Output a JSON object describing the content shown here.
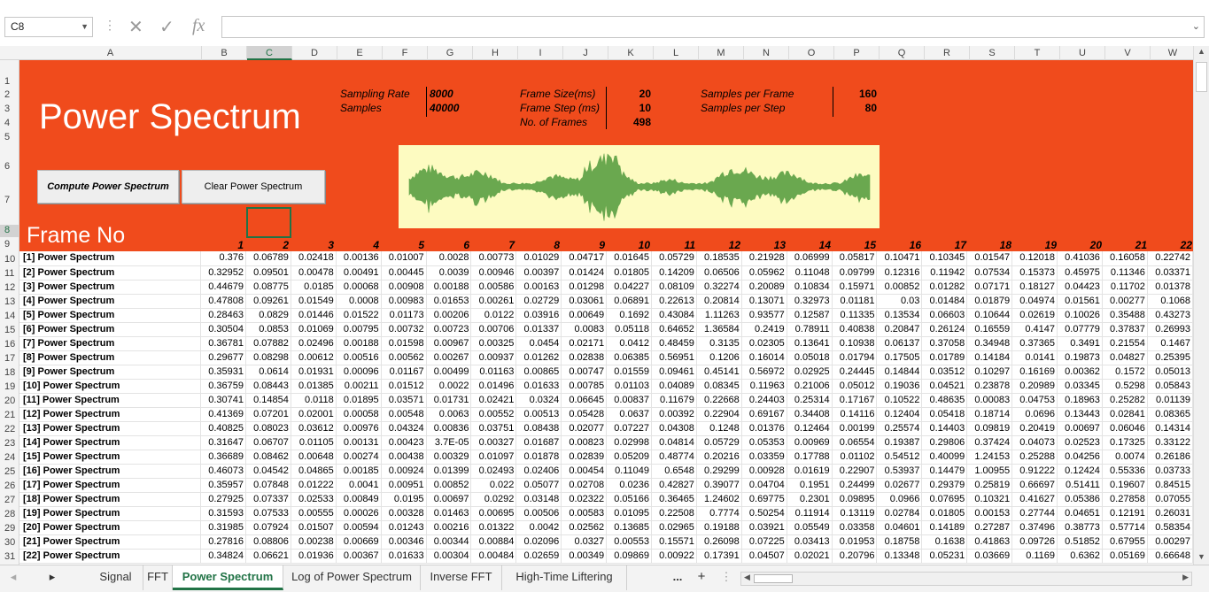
{
  "namebox": {
    "value": "C8"
  },
  "formula_bar": {
    "fx_label": "fx",
    "value": ""
  },
  "columns": [
    "A",
    "B",
    "C",
    "D",
    "E",
    "F",
    "G",
    "H",
    "I",
    "J",
    "K",
    "L",
    "M",
    "N",
    "O",
    "P",
    "Q",
    "R",
    "S",
    "T",
    "U",
    "V",
    "W"
  ],
  "selected_column": "C",
  "header_rows": [
    "1",
    "2",
    "3",
    "4",
    "5",
    "6",
    "7",
    "8",
    "9"
  ],
  "banner": {
    "title": "Power Spectrum",
    "frame_no_label": "Frame No",
    "sampling_rate_label": "Sampling Rate",
    "sampling_rate": "8000",
    "samples_label": "Samples",
    "samples": "40000",
    "frame_size_label": "Frame Size(ms)",
    "frame_size": "20",
    "frame_step_label": "Frame Step (ms)",
    "frame_step": "10",
    "num_frames_label": "No. of Frames",
    "num_frames": "498",
    "samples_per_frame_label": "Samples per Frame",
    "samples_per_frame": "160",
    "samples_per_step_label": "Samples per Step",
    "samples_per_step": "80",
    "compute_button": "Compute Power Spectrum",
    "clear_button": "Clear Power Spectrum"
  },
  "frame_indices": [
    "1",
    "2",
    "3",
    "4",
    "5",
    "6",
    "7",
    "8",
    "9",
    "10",
    "11",
    "12",
    "13",
    "14",
    "15",
    "16",
    "17",
    "18",
    "19",
    "20",
    "21",
    "22"
  ],
  "rows": [
    {
      "n": "10",
      "label": "[1] Power Spectrum",
      "v": [
        "0.376",
        "0.06789",
        "0.02418",
        "0.00136",
        "0.01007",
        "0.0028",
        "0.00773",
        "0.01029",
        "0.04717",
        "0.01645",
        "0.05729",
        "0.18535",
        "0.21928",
        "0.06999",
        "0.05817",
        "0.10471",
        "0.10345",
        "0.01547",
        "0.12018",
        "0.41036",
        "0.16058",
        "0.22742"
      ]
    },
    {
      "n": "11",
      "label": "[2] Power Spectrum",
      "v": [
        "0.32952",
        "0.09501",
        "0.00478",
        "0.00491",
        "0.00445",
        "0.0039",
        "0.00946",
        "0.00397",
        "0.01424",
        "0.01805",
        "0.14209",
        "0.06506",
        "0.05962",
        "0.11048",
        "0.09799",
        "0.12316",
        "0.11942",
        "0.07534",
        "0.15373",
        "0.45975",
        "0.11346",
        "0.03371"
      ]
    },
    {
      "n": "12",
      "label": "[3] Power Spectrum",
      "v": [
        "0.44679",
        "0.08775",
        "0.0185",
        "0.00068",
        "0.00908",
        "0.00188",
        "0.00586",
        "0.00163",
        "0.01298",
        "0.04227",
        "0.08109",
        "0.32274",
        "0.20089",
        "0.10834",
        "0.15971",
        "0.00852",
        "0.01282",
        "0.07171",
        "0.18127",
        "0.04423",
        "0.11702",
        "0.01378"
      ]
    },
    {
      "n": "13",
      "label": "[4] Power Spectrum",
      "v": [
        "0.47808",
        "0.09261",
        "0.01549",
        "0.0008",
        "0.00983",
        "0.01653",
        "0.00261",
        "0.02729",
        "0.03061",
        "0.06891",
        "0.22613",
        "0.20814",
        "0.13071",
        "0.32973",
        "0.01181",
        "0.03",
        "0.01484",
        "0.01879",
        "0.04974",
        "0.01561",
        "0.00277",
        "0.1068"
      ]
    },
    {
      "n": "14",
      "label": "[5] Power Spectrum",
      "v": [
        "0.28463",
        "0.0829",
        "0.01446",
        "0.01522",
        "0.01173",
        "0.00206",
        "0.0122",
        "0.03916",
        "0.00649",
        "0.1692",
        "0.43084",
        "1.11263",
        "0.93577",
        "0.12587",
        "0.11335",
        "0.13534",
        "0.06603",
        "0.10644",
        "0.02619",
        "0.10026",
        "0.35488",
        "0.43273"
      ]
    },
    {
      "n": "15",
      "label": "[6] Power Spectrum",
      "v": [
        "0.30504",
        "0.0853",
        "0.01069",
        "0.00795",
        "0.00732",
        "0.00723",
        "0.00706",
        "0.01337",
        "0.0083",
        "0.05118",
        "0.64652",
        "1.36584",
        "0.2419",
        "0.78911",
        "0.40838",
        "0.20847",
        "0.26124",
        "0.16559",
        "0.4147",
        "0.07779",
        "0.37837",
        "0.26993"
      ]
    },
    {
      "n": "16",
      "label": "[7] Power Spectrum",
      "v": [
        "0.36781",
        "0.07882",
        "0.02496",
        "0.00188",
        "0.01598",
        "0.00967",
        "0.00325",
        "0.0454",
        "0.02171",
        "0.0412",
        "0.48459",
        "0.3135",
        "0.02305",
        "0.13641",
        "0.10938",
        "0.06137",
        "0.37058",
        "0.34948",
        "0.37365",
        "0.3491",
        "0.21554",
        "0.1467"
      ]
    },
    {
      "n": "17",
      "label": "[8] Power Spectrum",
      "v": [
        "0.29677",
        "0.08298",
        "0.00612",
        "0.00516",
        "0.00562",
        "0.00267",
        "0.00937",
        "0.01262",
        "0.02838",
        "0.06385",
        "0.56951",
        "0.1206",
        "0.16014",
        "0.05018",
        "0.01794",
        "0.17505",
        "0.01789",
        "0.14184",
        "0.0141",
        "0.19873",
        "0.04827",
        "0.25395"
      ]
    },
    {
      "n": "18",
      "label": "[9] Power Spectrum",
      "v": [
        "0.35931",
        "0.0614",
        "0.01931",
        "0.00096",
        "0.01167",
        "0.00499",
        "0.01163",
        "0.00865",
        "0.00747",
        "0.01559",
        "0.09461",
        "0.45141",
        "0.56972",
        "0.02925",
        "0.24445",
        "0.14844",
        "0.03512",
        "0.10297",
        "0.16169",
        "0.00362",
        "0.1572",
        "0.05013"
      ]
    },
    {
      "n": "19",
      "label": "[10] Power Spectrum",
      "v": [
        "0.36759",
        "0.08443",
        "0.01385",
        "0.00211",
        "0.01512",
        "0.0022",
        "0.01496",
        "0.01633",
        "0.00785",
        "0.01103",
        "0.04089",
        "0.08345",
        "0.11963",
        "0.21006",
        "0.05012",
        "0.19036",
        "0.04521",
        "0.23878",
        "0.20989",
        "0.03345",
        "0.5298",
        "0.05843"
      ]
    },
    {
      "n": "20",
      "label": "[11] Power Spectrum",
      "v": [
        "0.30741",
        "0.14854",
        "0.0118",
        "0.01895",
        "0.03571",
        "0.01731",
        "0.02421",
        "0.0324",
        "0.06645",
        "0.00837",
        "0.11679",
        "0.22668",
        "0.24403",
        "0.25314",
        "0.17167",
        "0.10522",
        "0.48635",
        "0.00083",
        "0.04753",
        "0.18963",
        "0.25282",
        "0.01139"
      ]
    },
    {
      "n": "21",
      "label": "[12] Power Spectrum",
      "v": [
        "0.41369",
        "0.07201",
        "0.02001",
        "0.00058",
        "0.00548",
        "0.0063",
        "0.00552",
        "0.00513",
        "0.05428",
        "0.0637",
        "0.00392",
        "0.22904",
        "0.69167",
        "0.34408",
        "0.14116",
        "0.12404",
        "0.05418",
        "0.18714",
        "0.0696",
        "0.13443",
        "0.02841",
        "0.08365"
      ]
    },
    {
      "n": "22",
      "label": "[13] Power Spectrum",
      "v": [
        "0.40825",
        "0.08023",
        "0.03612",
        "0.00976",
        "0.04324",
        "0.00836",
        "0.03751",
        "0.08438",
        "0.02077",
        "0.07227",
        "0.04308",
        "0.1248",
        "0.01376",
        "0.12464",
        "0.00199",
        "0.25574",
        "0.14403",
        "0.09819",
        "0.20419",
        "0.00697",
        "0.06046",
        "0.14314"
      ]
    },
    {
      "n": "23",
      "label": "[14] Power Spectrum",
      "v": [
        "0.31647",
        "0.06707",
        "0.01105",
        "0.00131",
        "0.00423",
        "3.7E-05",
        "0.00327",
        "0.01687",
        "0.00823",
        "0.02998",
        "0.04814",
        "0.05729",
        "0.05353",
        "0.00969",
        "0.06554",
        "0.19387",
        "0.29806",
        "0.37424",
        "0.04073",
        "0.02523",
        "0.17325",
        "0.33122"
      ]
    },
    {
      "n": "24",
      "label": "[15] Power Spectrum",
      "v": [
        "0.36689",
        "0.08462",
        "0.00648",
        "0.00274",
        "0.00438",
        "0.00329",
        "0.01097",
        "0.01878",
        "0.02839",
        "0.05209",
        "0.48774",
        "0.20216",
        "0.03359",
        "0.17788",
        "0.01102",
        "0.54512",
        "0.40099",
        "1.24153",
        "0.25288",
        "0.04256",
        "0.0074",
        "0.26186"
      ]
    },
    {
      "n": "25",
      "label": "[16] Power Spectrum",
      "v": [
        "0.46073",
        "0.04542",
        "0.04865",
        "0.00185",
        "0.00924",
        "0.01399",
        "0.02493",
        "0.02406",
        "0.00454",
        "0.11049",
        "0.6548",
        "0.29299",
        "0.00928",
        "0.01619",
        "0.22907",
        "0.53937",
        "0.14479",
        "1.00955",
        "0.91222",
        "0.12424",
        "0.55336",
        "0.03733"
      ]
    },
    {
      "n": "26",
      "label": "[17] Power Spectrum",
      "v": [
        "0.35957",
        "0.07848",
        "0.01222",
        "0.0041",
        "0.00951",
        "0.00852",
        "0.022",
        "0.05077",
        "0.02708",
        "0.0236",
        "0.42827",
        "0.39077",
        "0.04704",
        "0.1951",
        "0.24499",
        "0.02677",
        "0.29379",
        "0.25819",
        "0.66697",
        "0.51411",
        "0.19607",
        "0.84515"
      ]
    },
    {
      "n": "27",
      "label": "[18] Power Spectrum",
      "v": [
        "0.27925",
        "0.07337",
        "0.02533",
        "0.00849",
        "0.0195",
        "0.00697",
        "0.0292",
        "0.03148",
        "0.02322",
        "0.05166",
        "0.36465",
        "1.24602",
        "0.69775",
        "0.2301",
        "0.09895",
        "0.0966",
        "0.07695",
        "0.10321",
        "0.41627",
        "0.05386",
        "0.27858",
        "0.07055"
      ]
    },
    {
      "n": "28",
      "label": "[19] Power Spectrum",
      "v": [
        "0.31593",
        "0.07533",
        "0.00555",
        "0.00026",
        "0.00328",
        "0.01463",
        "0.00695",
        "0.00506",
        "0.00583",
        "0.01095",
        "0.22508",
        "0.7774",
        "0.50254",
        "0.11914",
        "0.13119",
        "0.02784",
        "0.01805",
        "0.00153",
        "0.27744",
        "0.04651",
        "0.12191",
        "0.26031"
      ]
    },
    {
      "n": "29",
      "label": "[20] Power Spectrum",
      "v": [
        "0.31985",
        "0.07924",
        "0.01507",
        "0.00594",
        "0.01243",
        "0.00216",
        "0.01322",
        "0.0042",
        "0.02562",
        "0.13685",
        "0.02965",
        "0.19188",
        "0.03921",
        "0.05549",
        "0.03358",
        "0.04601",
        "0.14189",
        "0.27287",
        "0.37496",
        "0.38773",
        "0.57714",
        "0.58354"
      ]
    },
    {
      "n": "30",
      "label": "[21] Power Spectrum",
      "v": [
        "0.27816",
        "0.08806",
        "0.00238",
        "0.00669",
        "0.00346",
        "0.00344",
        "0.00884",
        "0.02096",
        "0.0327",
        "0.00553",
        "0.15571",
        "0.26098",
        "0.07225",
        "0.03413",
        "0.01953",
        "0.18758",
        "0.1638",
        "0.41863",
        "0.09726",
        "0.51852",
        "0.67955",
        "0.00297"
      ]
    },
    {
      "n": "31",
      "label": "[22] Power Spectrum",
      "v": [
        "0.34824",
        "0.06621",
        "0.01936",
        "0.00367",
        "0.01633",
        "0.00304",
        "0.00484",
        "0.02659",
        "0.00349",
        "0.09869",
        "0.00922",
        "0.17391",
        "0.04507",
        "0.02021",
        "0.20796",
        "0.13348",
        "0.05231",
        "0.03669",
        "0.1169",
        "0.6362",
        "0.05169",
        "0.66648"
      ]
    }
  ],
  "sheet_tabs": [
    "Signal",
    "FFT",
    "Power Spectrum",
    "Log of Power Spectrum",
    "Inverse FFT",
    "High-Time Liftering"
  ],
  "active_tab": "Power Spectrum",
  "tabs_more": "...",
  "tabs_add": "+"
}
